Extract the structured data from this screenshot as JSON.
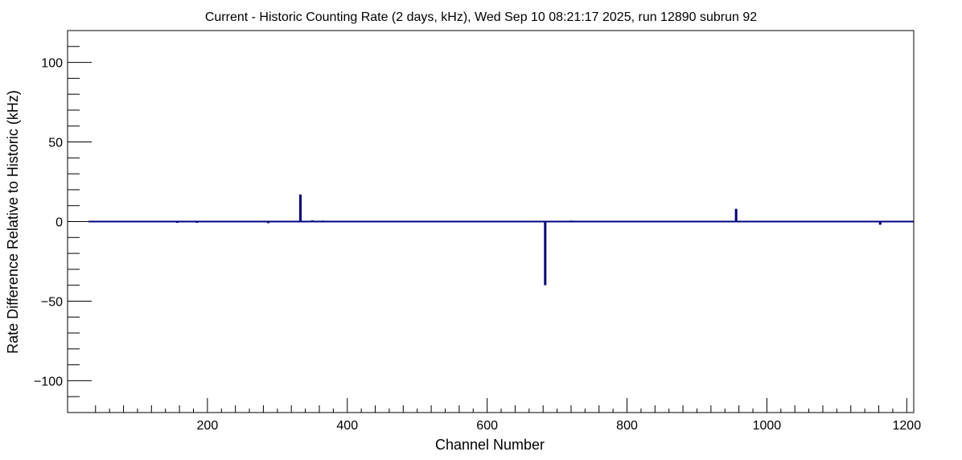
{
  "chart_data": {
    "type": "bar",
    "title": "Current - Historic Counting Rate (2 days, kHz), Wed Sep 10 08:21:17 2025, run 12890 subrun 92",
    "xlabel": "Channel Number",
    "ylabel": "Rate Difference Relative to Historic (kHz)",
    "xlim": [
      0,
      1210
    ],
    "ylim": [
      -120,
      120
    ],
    "x_ticks": [
      200,
      400,
      600,
      800,
      1000,
      1200
    ],
    "y_ticks": [
      -100,
      -50,
      0,
      50,
      100
    ],
    "x_tick_labels": [
      "200",
      "400",
      "600",
      "800",
      "1000",
      "1200"
    ],
    "y_tick_labels": [
      "−100",
      "−50",
      "0",
      "50",
      "100"
    ],
    "grid": false,
    "line_color": "#000080",
    "baseline_range": [
      30,
      1210
    ],
    "series": [
      {
        "x": [
          333,
          683,
          956,
          1162,
          287,
          157,
          185,
          350,
          365,
          1008,
          720,
          300
        ],
        "values": [
          17,
          -40,
          8,
          -2,
          -1,
          -0.8,
          -0.8,
          0.8,
          0.6,
          -0.5,
          0.6,
          0.5
        ]
      }
    ]
  }
}
